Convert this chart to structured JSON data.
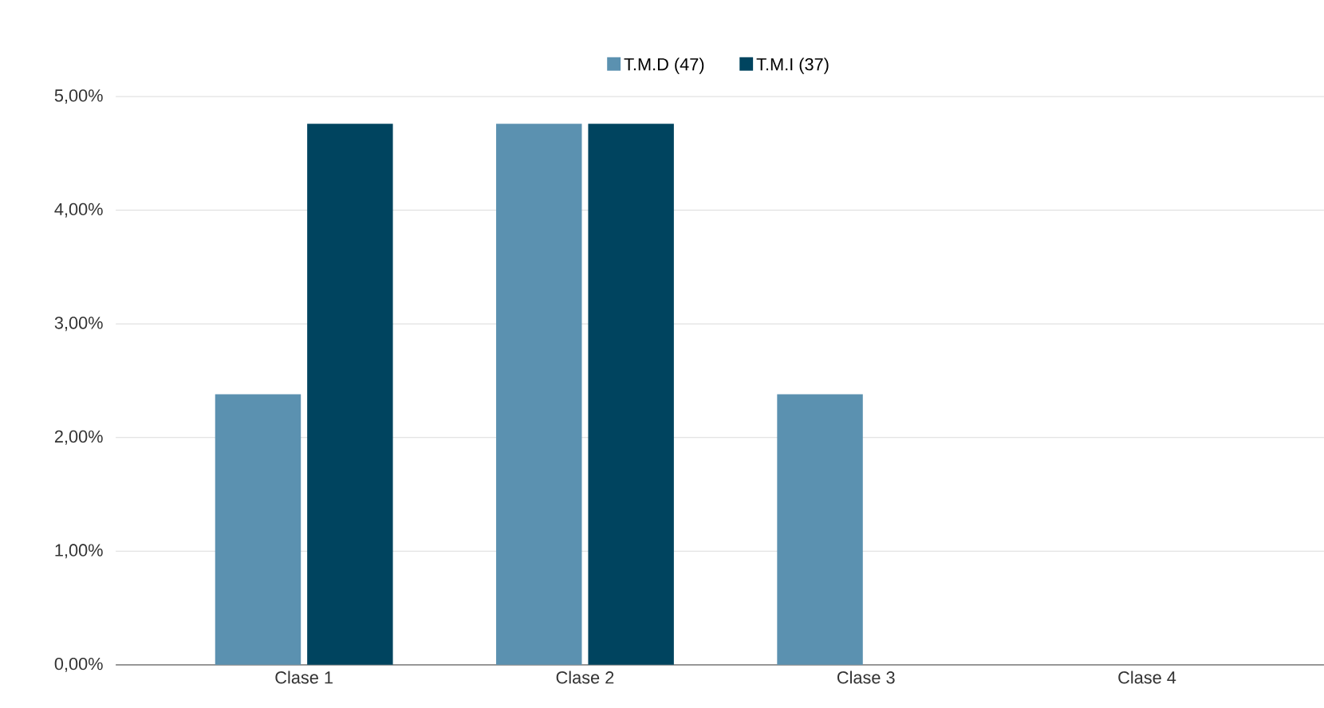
{
  "chart_data": {
    "type": "bar",
    "categories": [
      "Clase 1",
      "Clase 2",
      "Clase 3",
      "Clase 4"
    ],
    "series": [
      {
        "name": "T.M.D (47)",
        "color": "#5b91b0",
        "values": [
          2.38,
          4.76,
          2.38,
          0
        ]
      },
      {
        "name": "T.M.I (37)",
        "color": "#00445f",
        "values": [
          4.76,
          4.76,
          0,
          0
        ]
      }
    ],
    "ylim": [
      0,
      5
    ],
    "yticks": [
      {
        "value": 0,
        "label": "0,00%"
      },
      {
        "value": 1,
        "label": "1,00%"
      },
      {
        "value": 2,
        "label": "2,00%"
      },
      {
        "value": 3,
        "label": "3,00%"
      },
      {
        "value": 4,
        "label": "4,00%"
      },
      {
        "value": 5,
        "label": "5,00%"
      }
    ],
    "grid": "y",
    "legend": "top"
  }
}
